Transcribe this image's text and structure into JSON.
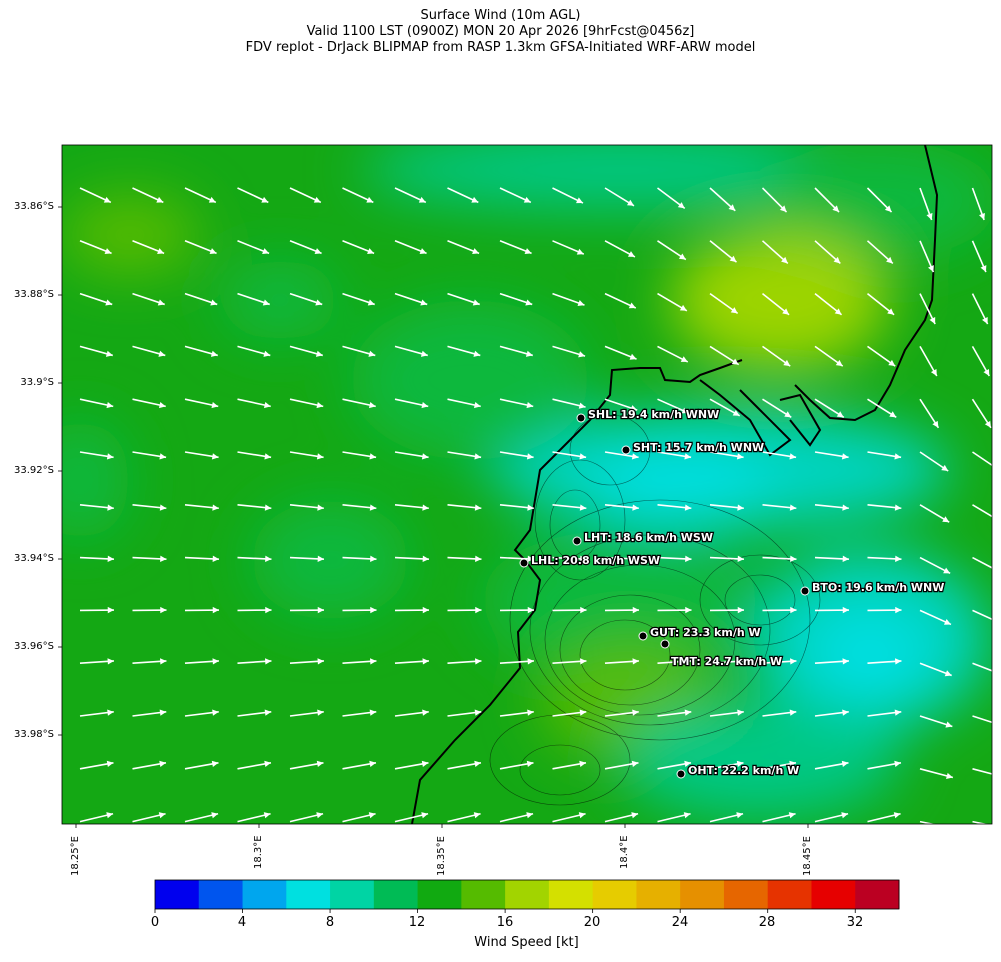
{
  "title": {
    "line1": "Surface Wind (10m AGL)",
    "line2": "Valid 1100 LST (0900Z) MON 20 Apr 2026 [9hrFcst@0456z]",
    "line3": "FDV replot - DrJack BLIPMAP from RASP 1.3km GFSA-Initiated WRF-ARW model"
  },
  "axes": {
    "lat_labels": [
      "33.86°S",
      "33.88°S",
      "33.9°S",
      "33.92°S",
      "33.94°S",
      "33.96°S",
      "33.98°S"
    ],
    "lon_labels": [
      "18.25°E",
      "18.3°E",
      "18.35°E",
      "18.4°E",
      "18.45°E"
    ]
  },
  "stations": [
    {
      "label": "SHL: 19.4 km/h WNW"
    },
    {
      "label": "SHT: 15.7 km/h WNW"
    },
    {
      "label": "LHT: 18.6 km/h WSW"
    },
    {
      "label": "LHL: 20.8 km/h WSW"
    },
    {
      "label": "BTO: 19.6 km/h WNW"
    },
    {
      "label": "GUT: 23.3 km/h W"
    },
    {
      "label": "TMT: 24.7 km/h W"
    },
    {
      "label": "OHT: 22.2 km/h W"
    }
  ],
  "colorbar": {
    "label": "Wind Speed [kt]",
    "ticks": [
      "0",
      "4",
      "8",
      "12",
      "16",
      "20",
      "24",
      "28",
      "32"
    ],
    "colors": [
      "#0000ee",
      "#0055ee",
      "#00a6ee",
      "#00e0e0",
      "#00d4a4",
      "#00bb55",
      "#11aa11",
      "#55bb00",
      "#a2d400",
      "#d4e000",
      "#e6cc00",
      "#e6b000",
      "#e69000",
      "#e66600",
      "#e63300",
      "#e60000",
      "#bb0022"
    ]
  },
  "legend_colors": {
    "map_green": "#14a814",
    "land_green": "#08b83c",
    "sea_cyan": "#00d4c0",
    "calm_cyan": "#00e0e4",
    "yellowgreen": "#9cd400",
    "coast": "#000000",
    "arrow": "#ffffff"
  }
}
